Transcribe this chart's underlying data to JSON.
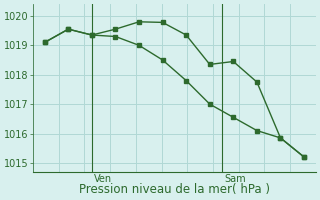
{
  "line1_x": [
    0,
    1,
    2,
    3,
    4,
    5,
    6,
    7,
    8,
    9,
    10,
    11
  ],
  "line1_y": [
    1019.1,
    1019.55,
    1019.35,
    1019.55,
    1019.8,
    1019.78,
    1019.35,
    1018.35,
    1018.45,
    1017.75,
    1015.85,
    1015.2
  ],
  "line2_x": [
    0,
    1,
    2,
    3,
    4,
    5,
    6,
    7,
    8,
    9,
    10,
    11
  ],
  "line2_y": [
    1019.1,
    1019.55,
    1019.35,
    1019.3,
    1019.0,
    1018.5,
    1017.8,
    1017.0,
    1016.55,
    1016.1,
    1015.85,
    1015.2
  ],
  "line_color": "#2d6a2d",
  "marker": "s",
  "marker_size": 2.5,
  "xlabel": "Pression niveau de la mer( hPa )",
  "ylim": [
    1014.7,
    1020.4
  ],
  "yticks": [
    1015,
    1016,
    1017,
    1018,
    1019,
    1020
  ],
  "bg_color": "#d8f0ee",
  "grid_color": "#b0d8d5",
  "ven_x_data": 2.0,
  "sam_x_data": 7.5,
  "ven_label": "Ven",
  "sam_label": "Sam",
  "xlabel_fontsize": 8.5,
  "tick_fontsize": 7,
  "xlim": [
    -0.5,
    11.5
  ],
  "xtick_positions": [
    2.0,
    7.5
  ],
  "num_x_gridlines": 11
}
